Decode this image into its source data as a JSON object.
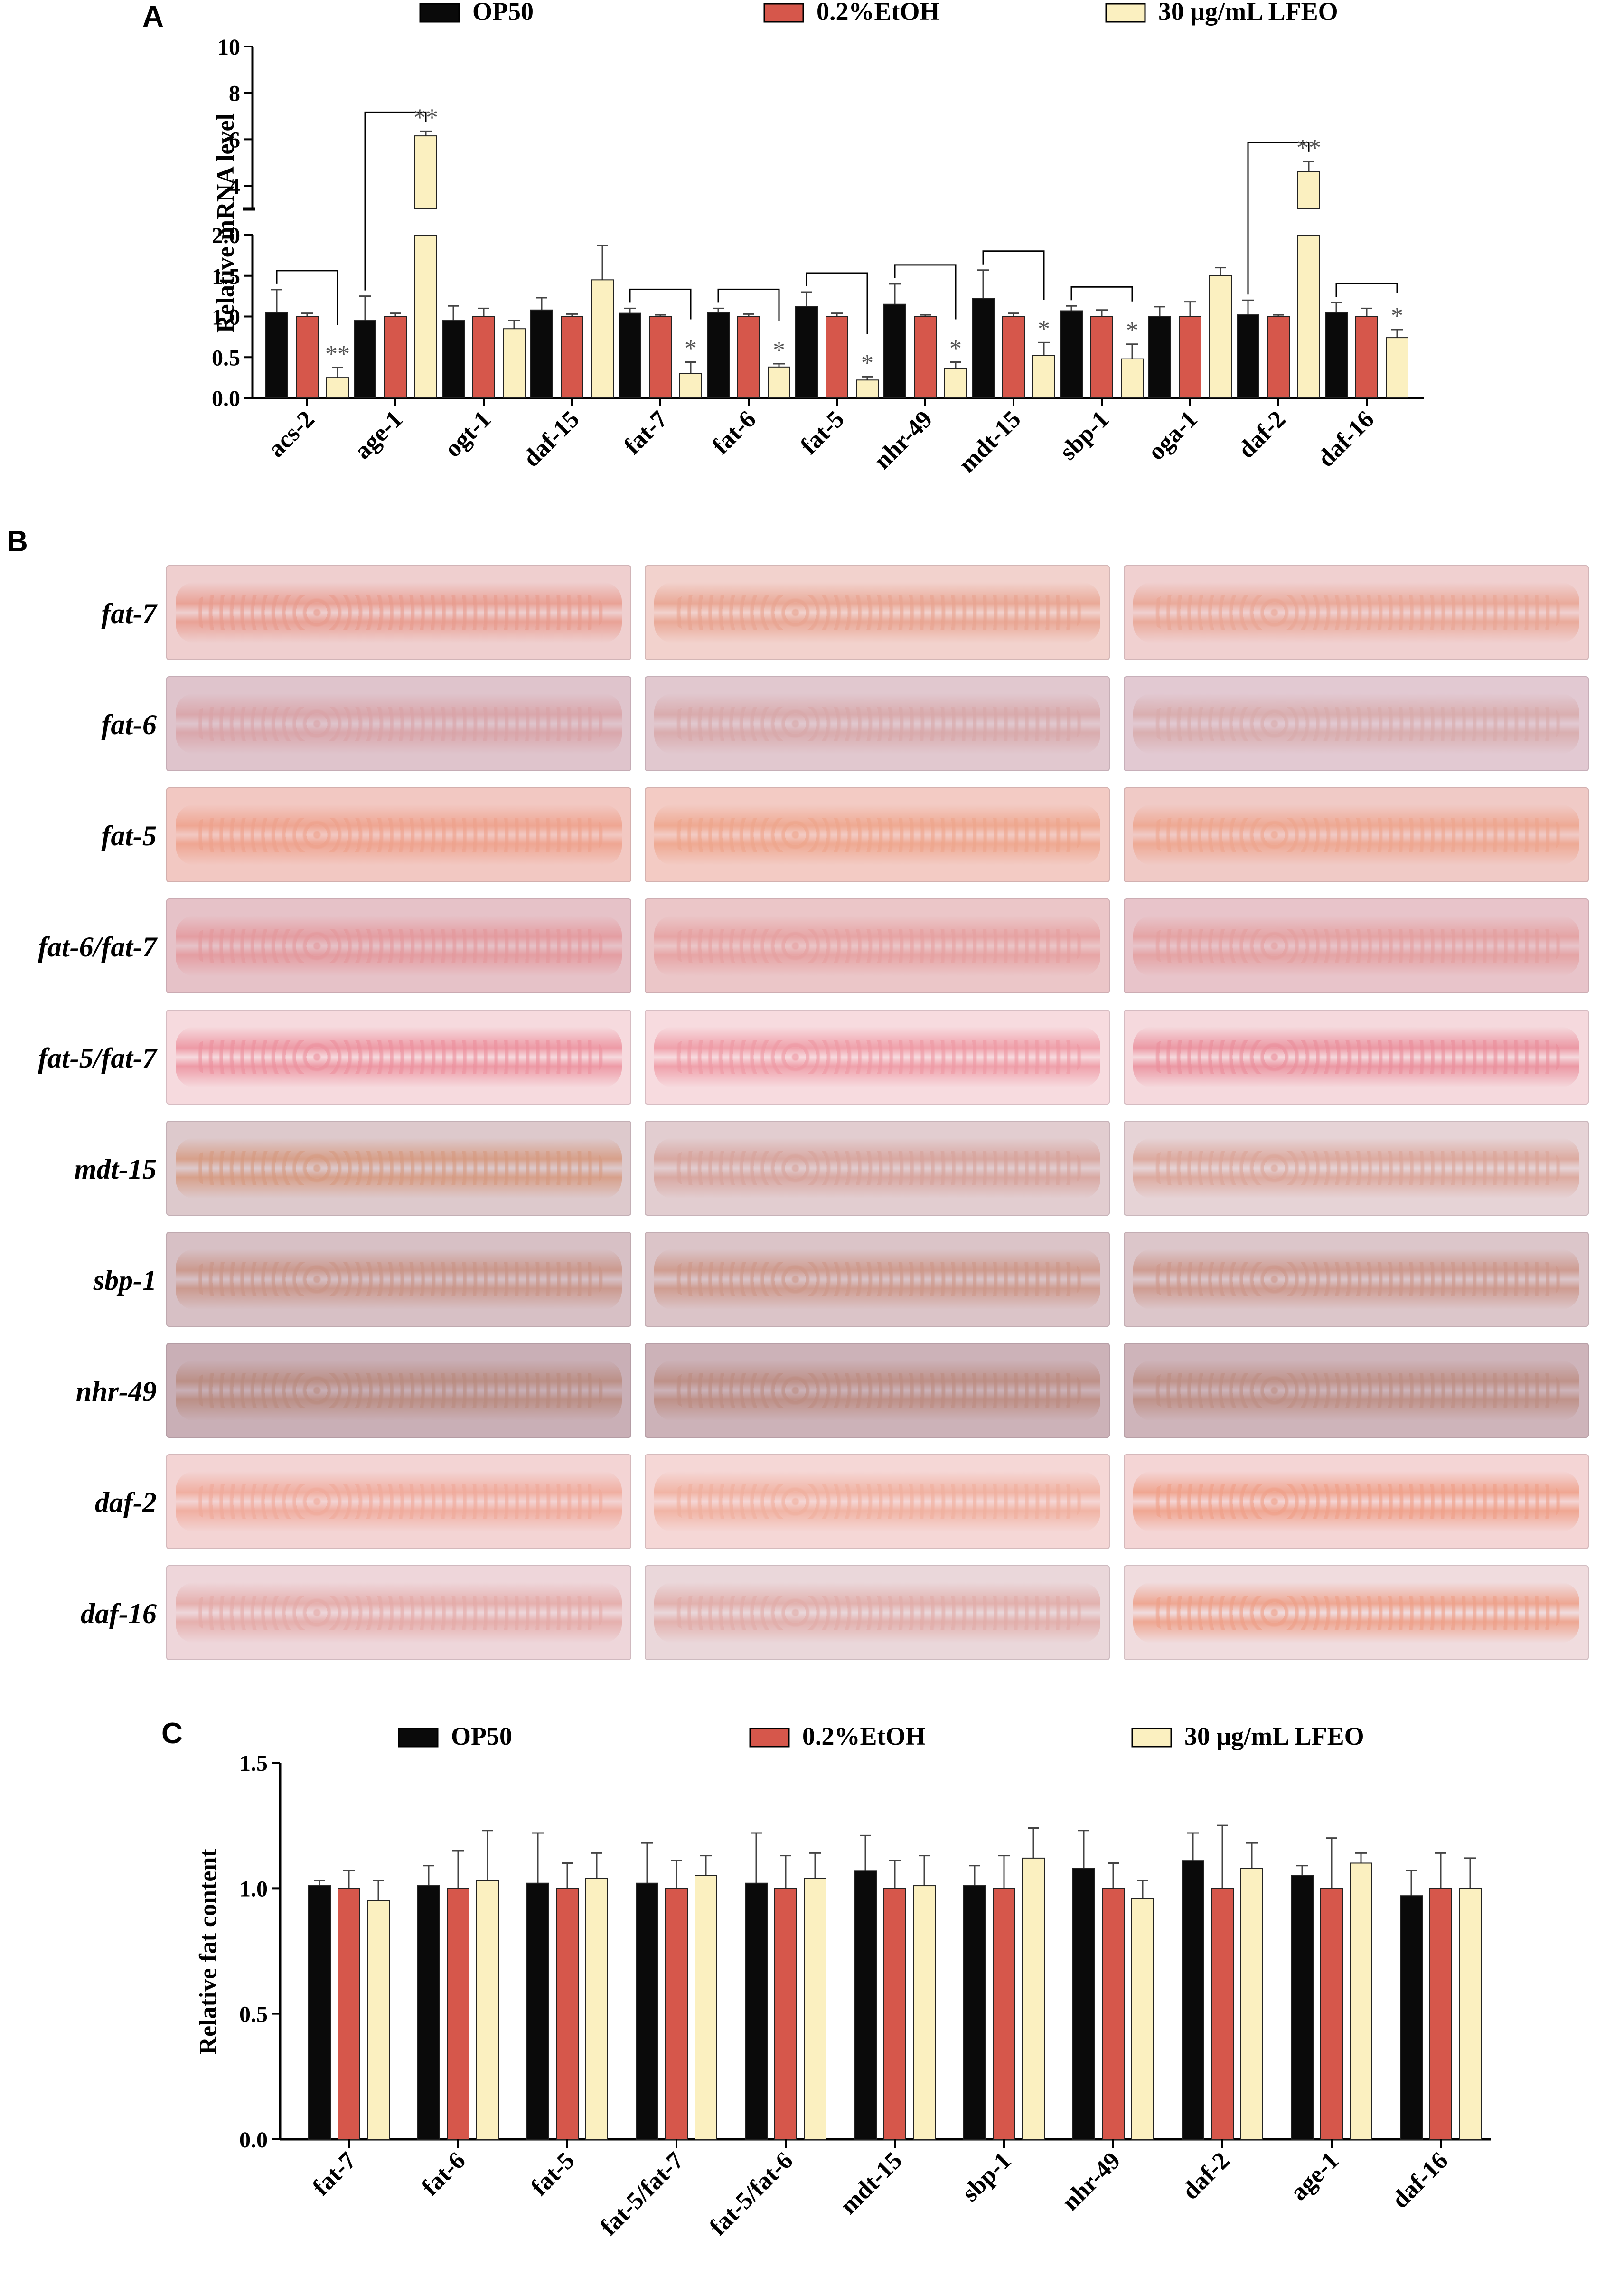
{
  "legend": {
    "items": [
      {
        "label": "OP50",
        "color": "#0a0a0a"
      },
      {
        "label": "0.2%EtOH",
        "color": "#d6574b"
      },
      {
        "label": "30 μg/mL LFEO",
        "color": "#fbf0c0"
      }
    ]
  },
  "panels": {
    "A": "A",
    "B": "B",
    "C": "C"
  },
  "chart_data": [
    {
      "panel": "A",
      "type": "bar",
      "ylabel": "Relative mRNA level",
      "y_axis_break": true,
      "yticks_lower": [
        "0.0",
        "0.5",
        "1.0",
        "1.5",
        "2.0"
      ],
      "yticks_upper": [
        "4",
        "6",
        "8",
        "10"
      ],
      "ylim_lower": [
        0,
        2
      ],
      "ylim_upper": [
        3,
        10
      ],
      "categories": [
        "acs-2",
        "age-1",
        "ogt-1",
        "daf-15",
        "fat-7",
        "fat-6",
        "fat-5",
        "nhr-49",
        "mdt-15",
        "sbp-1",
        "oga-1",
        "daf-2",
        "daf-16"
      ],
      "series": [
        {
          "name": "OP50",
          "values": [
            1.05,
            0.95,
            0.95,
            1.08,
            1.04,
            1.05,
            1.12,
            1.15,
            1.22,
            1.07,
            1.0,
            1.02,
            1.05
          ],
          "errors": [
            0.28,
            0.3,
            0.18,
            0.15,
            0.06,
            0.05,
            0.18,
            0.25,
            0.35,
            0.06,
            0.12,
            0.18,
            0.12
          ]
        },
        {
          "name": "0.2%EtOH",
          "values": [
            1.0,
            1.0,
            1.0,
            1.0,
            1.0,
            1.0,
            1.0,
            1.0,
            1.0,
            1.0,
            1.0,
            1.0,
            1.0
          ],
          "errors": [
            0.04,
            0.04,
            0.1,
            0.03,
            0.02,
            0.03,
            0.04,
            0.02,
            0.04,
            0.08,
            0.18,
            0.02,
            0.1
          ]
        },
        {
          "name": "30 μg/mL LFEO",
          "values": [
            0.25,
            6.15,
            0.85,
            1.45,
            0.3,
            0.38,
            0.22,
            0.36,
            0.52,
            0.48,
            1.5,
            4.6,
            0.74
          ],
          "errors": [
            0.12,
            0.2,
            0.1,
            0.42,
            0.14,
            0.04,
            0.04,
            0.08,
            0.16,
            0.18,
            0.1,
            0.45,
            0.1
          ]
        }
      ],
      "significance": [
        {
          "category": "acs-2",
          "mark": "**"
        },
        {
          "category": "age-1",
          "mark": "**"
        },
        {
          "category": "fat-7",
          "mark": "*"
        },
        {
          "category": "fat-6",
          "mark": "*"
        },
        {
          "category": "fat-5",
          "mark": "*"
        },
        {
          "category": "nhr-49",
          "mark": "*"
        },
        {
          "category": "mdt-15",
          "mark": "*"
        },
        {
          "category": "sbp-1",
          "mark": "*"
        },
        {
          "category": "daf-2",
          "mark": "**"
        },
        {
          "category": "daf-16",
          "mark": "*"
        }
      ]
    },
    {
      "panel": "C",
      "type": "bar",
      "ylabel": "Relative fat content",
      "yticks": [
        "0.0",
        "0.5",
        "1.0",
        "1.5"
      ],
      "ylim": [
        0,
        1.5
      ],
      "categories": [
        "fat-7",
        "fat-6",
        "fat-5",
        "fat-5/fat-7",
        "fat-5/fat-6",
        "mdt-15",
        "sbp-1",
        "nhr-49",
        "daf-2",
        "age-1",
        "daf-16"
      ],
      "series": [
        {
          "name": "OP50",
          "values": [
            1.01,
            1.01,
            1.02,
            1.02,
            1.02,
            1.07,
            1.01,
            1.08,
            1.11,
            1.05,
            0.97
          ],
          "errors": [
            0.02,
            0.08,
            0.2,
            0.16,
            0.2,
            0.14,
            0.08,
            0.15,
            0.11,
            0.04,
            0.1
          ]
        },
        {
          "name": "0.2%EtOH",
          "values": [
            1.0,
            1.0,
            1.0,
            1.0,
            1.0,
            1.0,
            1.0,
            1.0,
            1.0,
            1.0,
            1.0
          ],
          "errors": [
            0.07,
            0.15,
            0.1,
            0.11,
            0.13,
            0.11,
            0.13,
            0.1,
            0.25,
            0.2,
            0.14
          ]
        },
        {
          "name": "30 μg/mL LFEO",
          "values": [
            0.95,
            1.03,
            1.04,
            1.05,
            1.04,
            1.01,
            1.12,
            0.96,
            1.08,
            1.1,
            1.0
          ],
          "errors": [
            0.08,
            0.2,
            0.1,
            0.08,
            0.1,
            0.12,
            0.12,
            0.07,
            0.1,
            0.04,
            0.12
          ]
        }
      ]
    }
  ],
  "panel_b": {
    "rows": [
      "fat-7",
      "fat-6",
      "fat-5",
      "fat-6/fat-7",
      "fat-5/fat-7",
      "mdt-15",
      "sbp-1",
      "nhr-49",
      "daf-2",
      "daf-16"
    ],
    "tints": [
      [
        "#efcfcf",
        "#f2d2cd",
        "#f0d0d0"
      ],
      [
        "#dfc4cc",
        "#e1c8cf",
        "#e2c9d2"
      ],
      [
        "#f2c8c2",
        "#f3cbc4",
        "#f0cac6"
      ],
      [
        "#e6c2c8",
        "#ebc6c8",
        "#e8c4ca"
      ],
      [
        "#f6dade",
        "#f7dbdf",
        "#f5d9dd"
      ],
      [
        "#ddc9cc",
        "#e2cdd0",
        "#e6d3d6"
      ],
      [
        "#d7c0c5",
        "#dbc4c8",
        "#dcc6ca"
      ],
      [
        "#c9afb6",
        "#ccb2b8",
        "#ceb4ba"
      ],
      [
        "#f3d4d4",
        "#f5d7d6",
        "#f4d5d5"
      ],
      [
        "#eed6da",
        "#ead7da",
        "#f0dcde"
      ]
    ],
    "fat": [
      [
        "#e89a8c",
        "#e8a28e",
        "#e9a492"
      ],
      [
        "#d9a2a6",
        "#d8a7a8",
        "#d8aaaa"
      ],
      [
        "#eea08a",
        "#eea48a",
        "#eea48c"
      ],
      [
        "#e4979b",
        "#e69f9f",
        "#e49e9e"
      ],
      [
        "#ec8f9c",
        "#ee97a2",
        "#ea8d9a"
      ],
      [
        "#d6997f",
        "#d7a29a",
        "#dba497"
      ],
      [
        "#c99385",
        "#cd9687",
        "#cc9588"
      ],
      [
        "#b98a7e",
        "#bc8b80",
        "#bd8d82"
      ],
      [
        "#f0a898",
        "#f0ae9c",
        "#ef9e86"
      ],
      [
        "#e4a9a6",
        "#e1aba7",
        "#ee9e86"
      ]
    ]
  }
}
